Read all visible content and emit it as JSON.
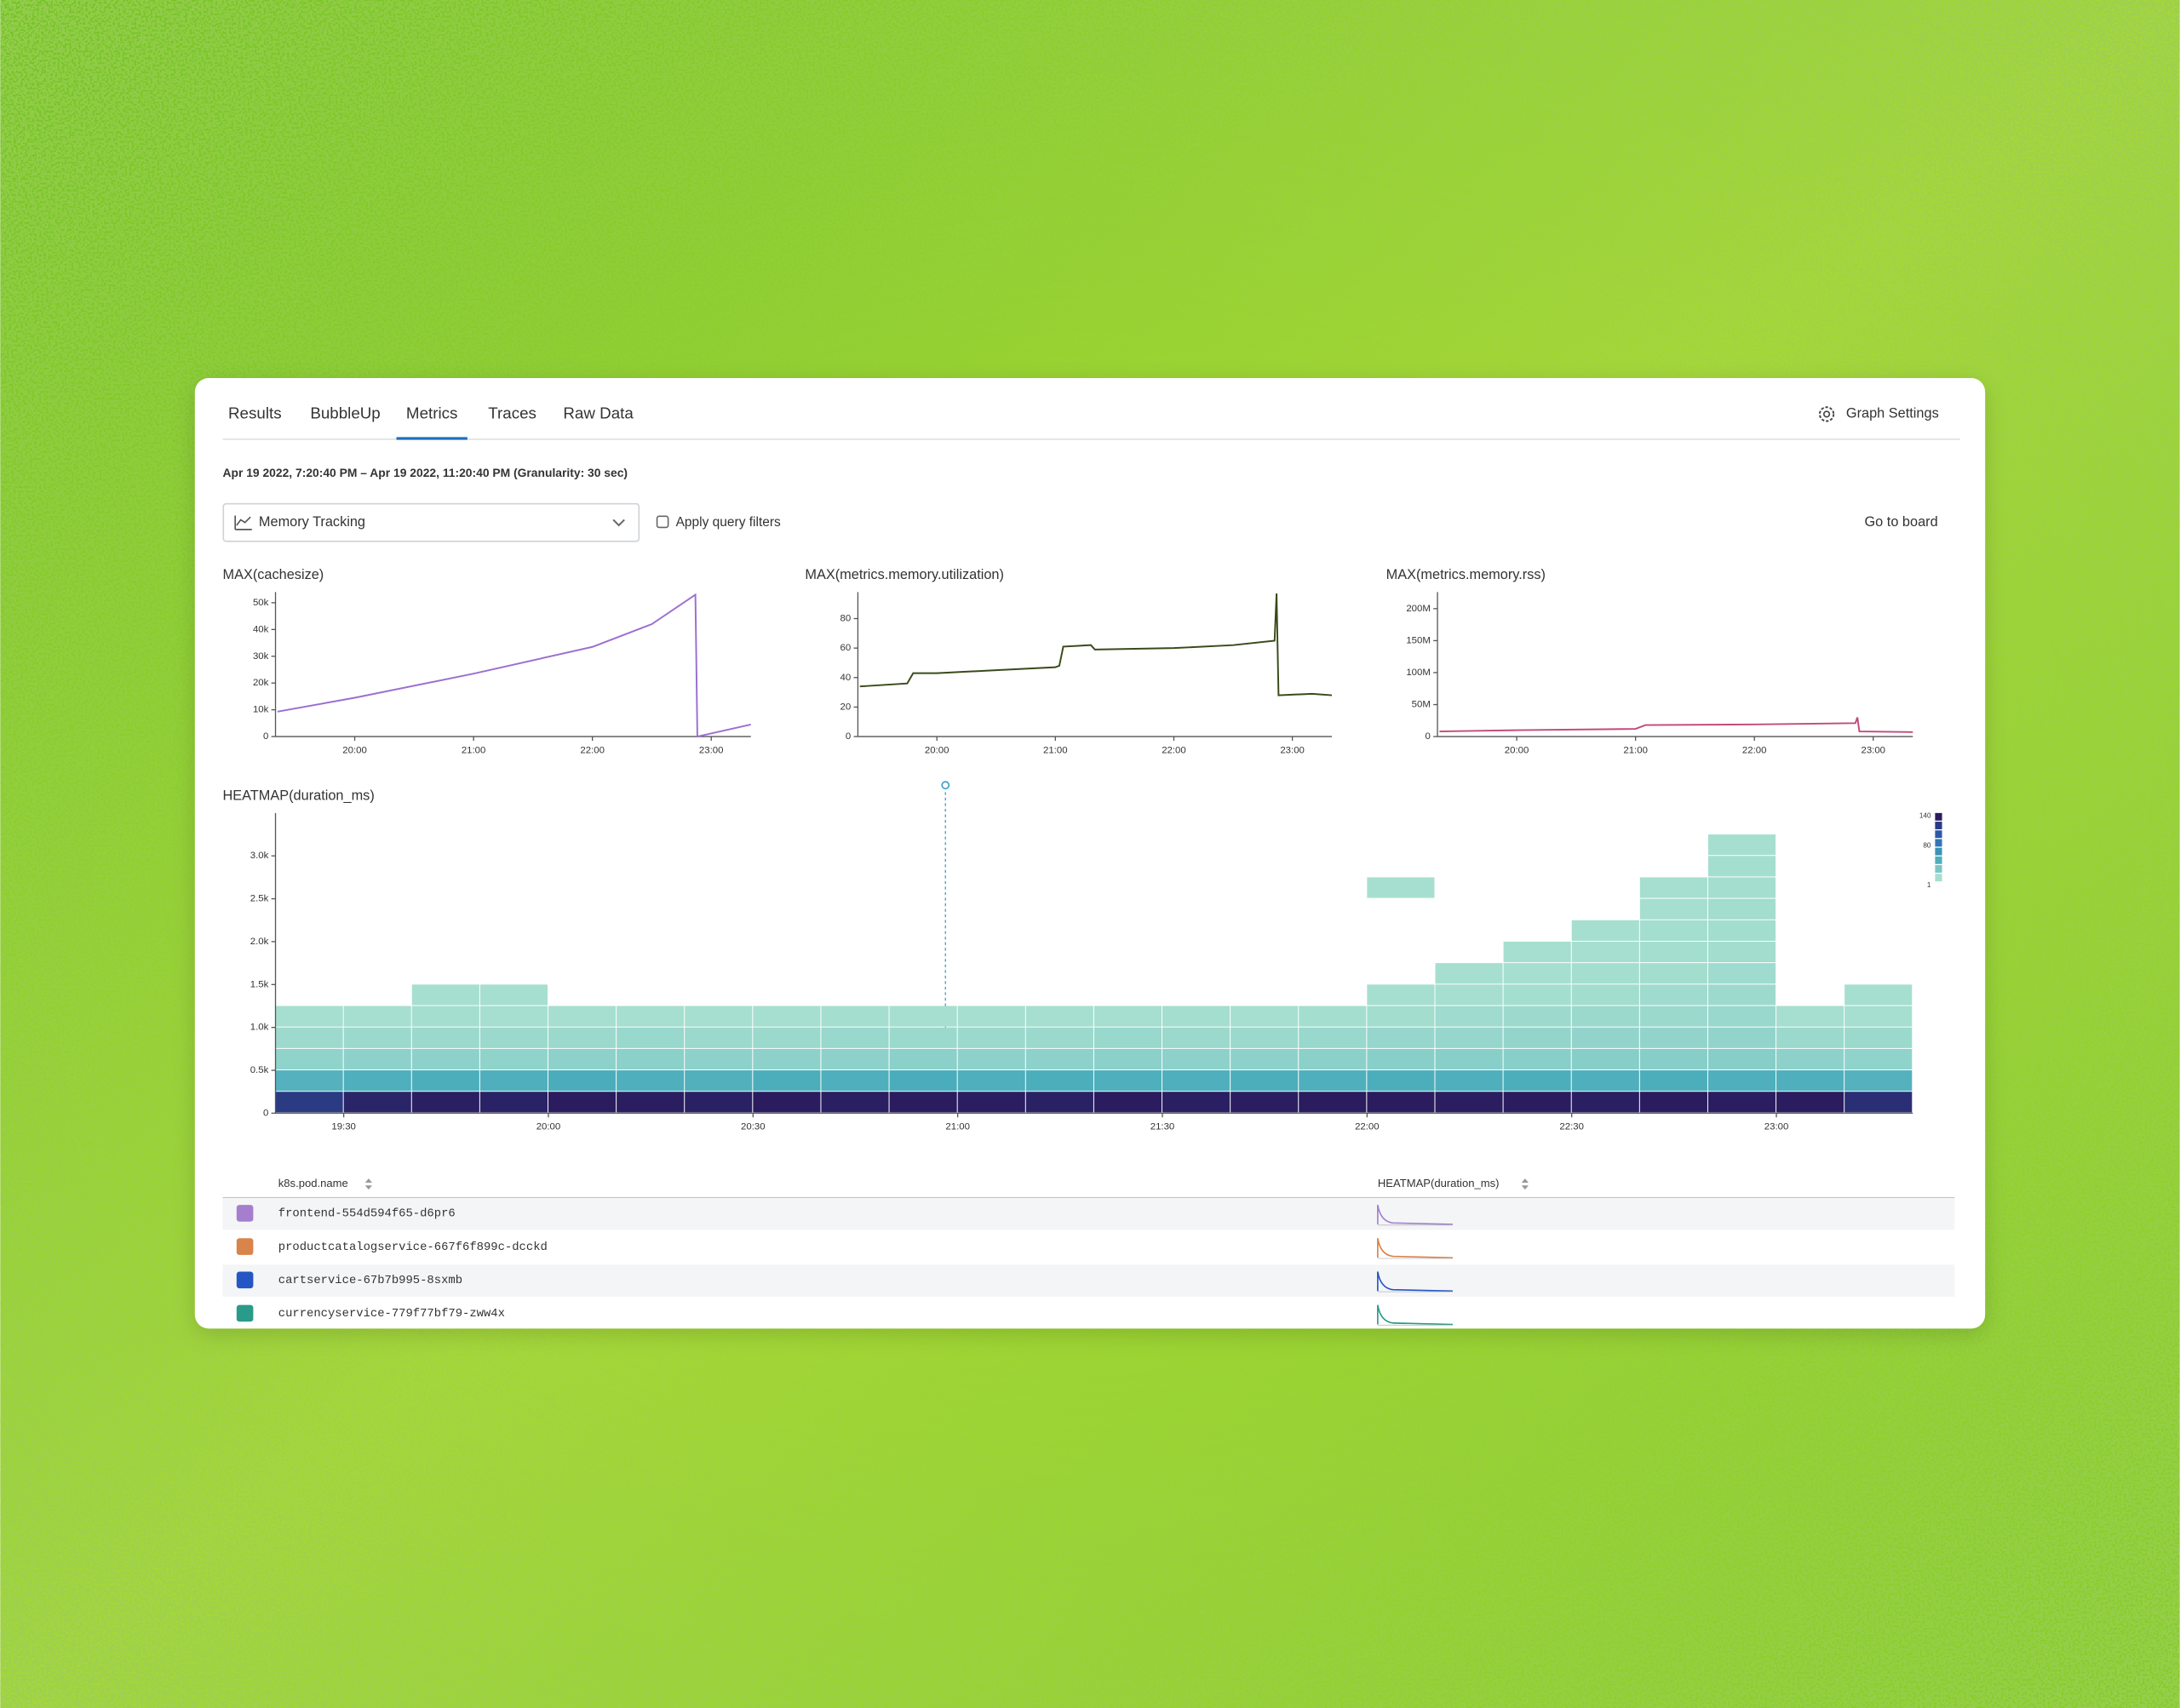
{
  "tabs": [
    {
      "label": "Results",
      "active": false
    },
    {
      "label": "BubbleUp",
      "active": false
    },
    {
      "label": "Metrics",
      "active": true
    },
    {
      "label": "Traces",
      "active": false
    },
    {
      "label": "Raw Data",
      "active": false
    }
  ],
  "graph_settings": "Graph Settings",
  "time_range": "Apr 19 2022, 7:20:40 PM – Apr 19 2022, 11:20:40 PM (Granularity: 30 sec)",
  "query": {
    "selected": "Memory Tracking",
    "filter_label": "Apply query filters",
    "filter_checked": false,
    "link": "Go to board"
  },
  "chart_data": [
    {
      "type": "line",
      "title": "MAX(cachesize)",
      "color": "#9b6fd0",
      "x": [
        "19:21",
        "20:00",
        "21:00",
        "22:00",
        "22:30",
        "22:52",
        "22:53",
        "23:20"
      ],
      "values": [
        9300,
        14500,
        23500,
        33500,
        42000,
        53000,
        0,
        4500
      ],
      "xlim": [
        "19:20",
        "23:20"
      ],
      "xticks": [
        "20:00",
        "21:00",
        "22:00",
        "23:00"
      ],
      "ylim": [
        0,
        54000
      ],
      "yticks": [
        0,
        {
          "value": 10000,
          "label": "10k"
        },
        {
          "value": 20000,
          "label": "20k"
        },
        {
          "value": 30000,
          "label": "30k"
        },
        {
          "value": 40000,
          "label": "40k"
        },
        {
          "value": 50000,
          "label": "50k"
        }
      ]
    },
    {
      "type": "line",
      "title": "MAX(metrics.memory.utilization)",
      "color": "#3a4a1a",
      "x": [
        "19:21",
        "19:45",
        "19:48",
        "20:00",
        "20:30",
        "21:00",
        "21:02",
        "21:04",
        "21:18",
        "21:20",
        "22:00",
        "22:30",
        "22:51",
        "22:52",
        "22:53",
        "23:10",
        "23:20"
      ],
      "values": [
        34,
        36,
        43,
        43,
        45,
        47,
        48,
        61,
        62,
        59,
        60,
        62,
        65,
        97,
        28,
        29,
        28
      ],
      "xlim": [
        "19:20",
        "23:20"
      ],
      "xticks": [
        "20:00",
        "21:00",
        "22:00",
        "23:00"
      ],
      "ylim": [
        0,
        98
      ],
      "yticks": [
        0,
        20,
        40,
        60,
        80
      ]
    },
    {
      "type": "line",
      "title": "MAX(metrics.memory.rss)",
      "color": "#c2497a",
      "x": [
        "19:21",
        "19:40",
        "20:00",
        "21:00",
        "21:05",
        "22:00",
        "22:51",
        "22:52",
        "22:53",
        "23:20"
      ],
      "values": [
        8000000,
        9000000,
        10000000,
        12000000,
        18000000,
        19000000,
        21000000,
        30000000,
        8000000,
        7000000
      ],
      "xlim": [
        "19:20",
        "23:20"
      ],
      "xticks": [
        "20:00",
        "21:00",
        "22:00",
        "23:00"
      ],
      "ylim": [
        0,
        226000000
      ],
      "yticks": [
        0,
        {
          "value": 50000000,
          "label": "50M"
        },
        {
          "value": 100000000,
          "label": "100M"
        },
        {
          "value": 150000000,
          "label": "150M"
        },
        {
          "value": 200000000,
          "label": "200M"
        }
      ]
    },
    {
      "type": "heatmap",
      "title": "HEATMAP(duration_ms)",
      "xbins": [
        "19:20",
        "19:30",
        "19:40",
        "19:50",
        "20:00",
        "20:10",
        "20:20",
        "20:30",
        "20:40",
        "20:50",
        "21:00",
        "21:10",
        "21:20",
        "21:30",
        "21:40",
        "21:50",
        "22:00",
        "22:10",
        "22:20",
        "22:30",
        "22:40",
        "22:50",
        "23:00",
        "23:10",
        "23:20"
      ],
      "ybins": [
        0,
        250,
        500,
        750,
        1000,
        1250,
        1500,
        1750,
        2000,
        2250,
        2500,
        2750,
        3000,
        3250
      ],
      "counts": [
        [
          120,
          38,
          11,
          5,
          1,
          0,
          0,
          0,
          0,
          0,
          0,
          0,
          0
        ],
        [
          135,
          40,
          12,
          6,
          1,
          0,
          0,
          0,
          0,
          0,
          0,
          0,
          0
        ],
        [
          138,
          41,
          12,
          6,
          2,
          1,
          0,
          0,
          0,
          0,
          0,
          0,
          0
        ],
        [
          136,
          40,
          11,
          6,
          1,
          1,
          0,
          0,
          0,
          0,
          0,
          0,
          0
        ],
        [
          140,
          42,
          12,
          6,
          1,
          0,
          0,
          0,
          0,
          0,
          0,
          0,
          0
        ],
        [
          139,
          40,
          13,
          7,
          1,
          0,
          0,
          0,
          0,
          0,
          0,
          0,
          0
        ],
        [
          137,
          39,
          12,
          6,
          1,
          0,
          0,
          0,
          0,
          0,
          0,
          0,
          0
        ],
        [
          140,
          41,
          12,
          6,
          1,
          0,
          0,
          0,
          0,
          0,
          0,
          0,
          0
        ],
        [
          138,
          40,
          12,
          7,
          2,
          0,
          0,
          0,
          0,
          0,
          0,
          0,
          0
        ],
        [
          140,
          42,
          13,
          6,
          1,
          0,
          0,
          0,
          0,
          0,
          0,
          0,
          0
        ],
        [
          139,
          40,
          12,
          6,
          1,
          0,
          0,
          0,
          0,
          0,
          0,
          0,
          0
        ],
        [
          137,
          41,
          12,
          6,
          1,
          0,
          0,
          0,
          0,
          0,
          0,
          0,
          0
        ],
        [
          140,
          40,
          13,
          7,
          1,
          0,
          0,
          0,
          0,
          0,
          0,
          0,
          0
        ],
        [
          138,
          40,
          12,
          6,
          2,
          0,
          0,
          0,
          0,
          0,
          0,
          0,
          0
        ],
        [
          139,
          41,
          12,
          6,
          1,
          0,
          0,
          0,
          0,
          0,
          0,
          0,
          0
        ],
        [
          140,
          40,
          13,
          7,
          2,
          0,
          0,
          0,
          0,
          0,
          0,
          0,
          0
        ],
        [
          140,
          41,
          14,
          8,
          3,
          1,
          0,
          0,
          0,
          0,
          1,
          0,
          0
        ],
        [
          139,
          40,
          14,
          8,
          4,
          1,
          1,
          0,
          0,
          0,
          0,
          0,
          0
        ],
        [
          140,
          41,
          14,
          9,
          5,
          2,
          1,
          1,
          0,
          0,
          0,
          0,
          0
        ],
        [
          138,
          40,
          15,
          10,
          6,
          3,
          2,
          1,
          1,
          0,
          0,
          0,
          0
        ],
        [
          140,
          41,
          15,
          10,
          6,
          4,
          3,
          2,
          2,
          1,
          1,
          0,
          0
        ],
        [
          139,
          40,
          15,
          10,
          7,
          5,
          4,
          3,
          3,
          3,
          2,
          2,
          1
        ],
        [
          140,
          40,
          12,
          6,
          1,
          0,
          0,
          0,
          0,
          0,
          0,
          0,
          0
        ],
        [
          128,
          38,
          11,
          6,
          1,
          1,
          0,
          0,
          0,
          0,
          0,
          0,
          0
        ]
      ],
      "colorscale": {
        "colors": [
          "#a6dfcf",
          "#3fa6b8",
          "#2b63b5",
          "#2a1c5f"
        ],
        "ticks": [
          140,
          80,
          1
        ]
      },
      "xlim": [
        "19:20",
        "23:20"
      ],
      "xticks": [
        "19:30",
        "20:00",
        "20:30",
        "21:00",
        "21:30",
        "22:00",
        "22:30",
        "23:00"
      ],
      "ylim": [
        0,
        3500
      ],
      "yticks": [
        0,
        {
          "value": 500,
          "label": "0.5k"
        },
        {
          "value": 1000,
          "label": "1.0k"
        },
        {
          "value": 1500,
          "label": "1.5k"
        },
        {
          "value": 2000,
          "label": "2.0k"
        },
        {
          "value": 2500,
          "label": "2.5k"
        },
        {
          "value": 3000,
          "label": "3.0k"
        }
      ]
    }
  ],
  "table": {
    "columns": [
      "k8s.pod.name",
      "HEATMAP(duration_ms)"
    ],
    "rows": [
      {
        "name": "frontend-554d594f65-d6pr6",
        "color": "#a57fce"
      },
      {
        "name": "productcatalogservice-667f6f899c-dcckd",
        "color": "#d9844a"
      },
      {
        "name": "cartservice-67b7b995-8sxmb",
        "color": "#2456c4"
      },
      {
        "name": "currencyservice-779f77bf79-zww4x",
        "color": "#2a9a8a"
      }
    ]
  }
}
